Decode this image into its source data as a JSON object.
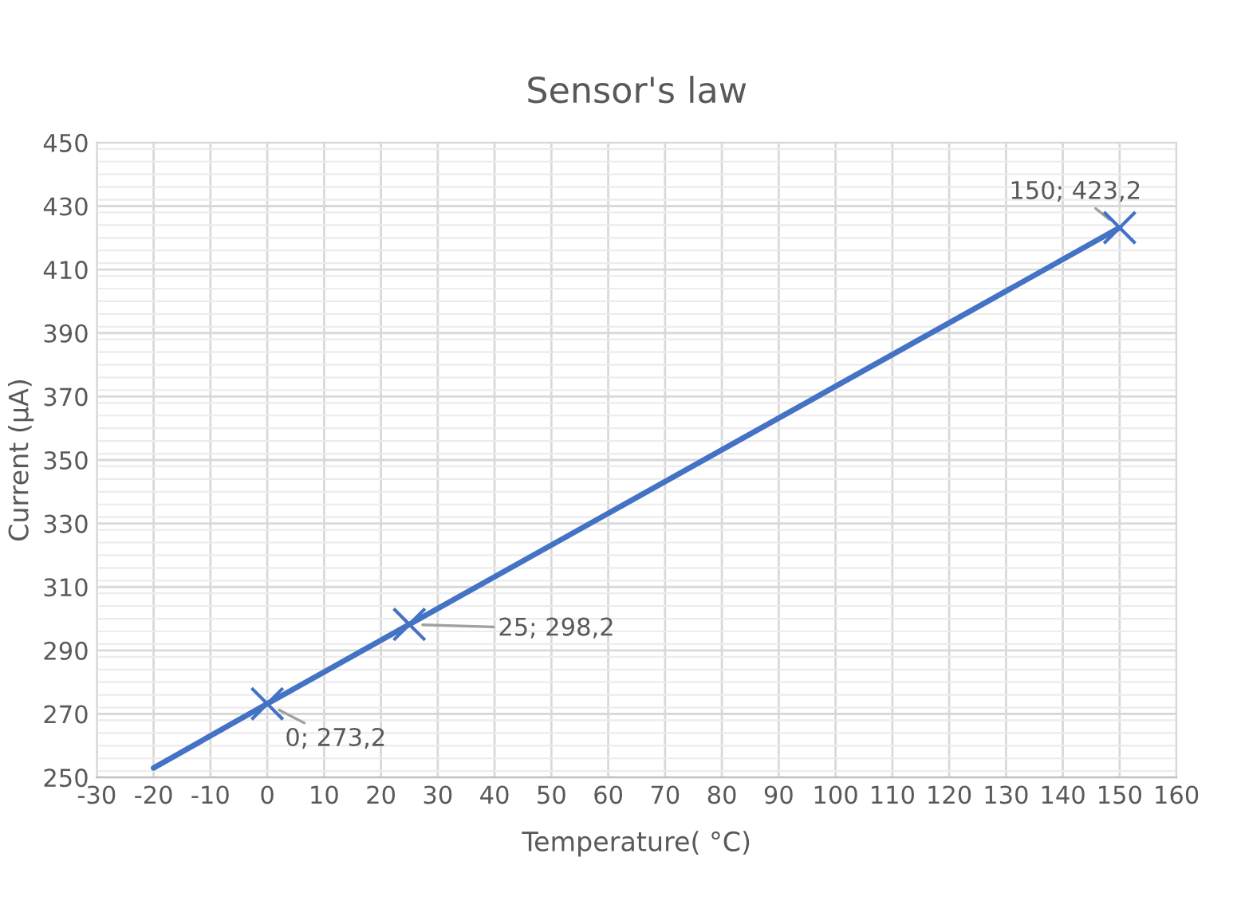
{
  "chart_data": {
    "type": "line",
    "title": "Sensor's law",
    "xlabel": "Temperature( °C)",
    "ylabel": "Current (µA)",
    "series": [
      {
        "color": "#4472c4",
        "x": [
          -20,
          0,
          25,
          150
        ],
        "values": [
          253,
          273.2,
          298.2,
          423.2
        ],
        "marker": "none"
      },
      {
        "type": "scatter",
        "color": "#4472c4",
        "x": [
          0,
          25,
          150
        ],
        "values": [
          273.2,
          298.2,
          423.2
        ],
        "marker": "cross",
        "value_labels": [
          "0; 273,2",
          "25; 298,2",
          "150; 423,2"
        ]
      }
    ],
    "xlim": [
      -30,
      160
    ],
    "xticks": [
      -30,
      -20,
      -10,
      0,
      10,
      20,
      30,
      40,
      50,
      60,
      70,
      80,
      90,
      100,
      110,
      120,
      130,
      140,
      150,
      160
    ],
    "ylim": [
      250,
      450
    ],
    "yticks": [
      250,
      270,
      290,
      310,
      330,
      350,
      370,
      390,
      410,
      430,
      450
    ],
    "grid": true,
    "legend": false
  }
}
